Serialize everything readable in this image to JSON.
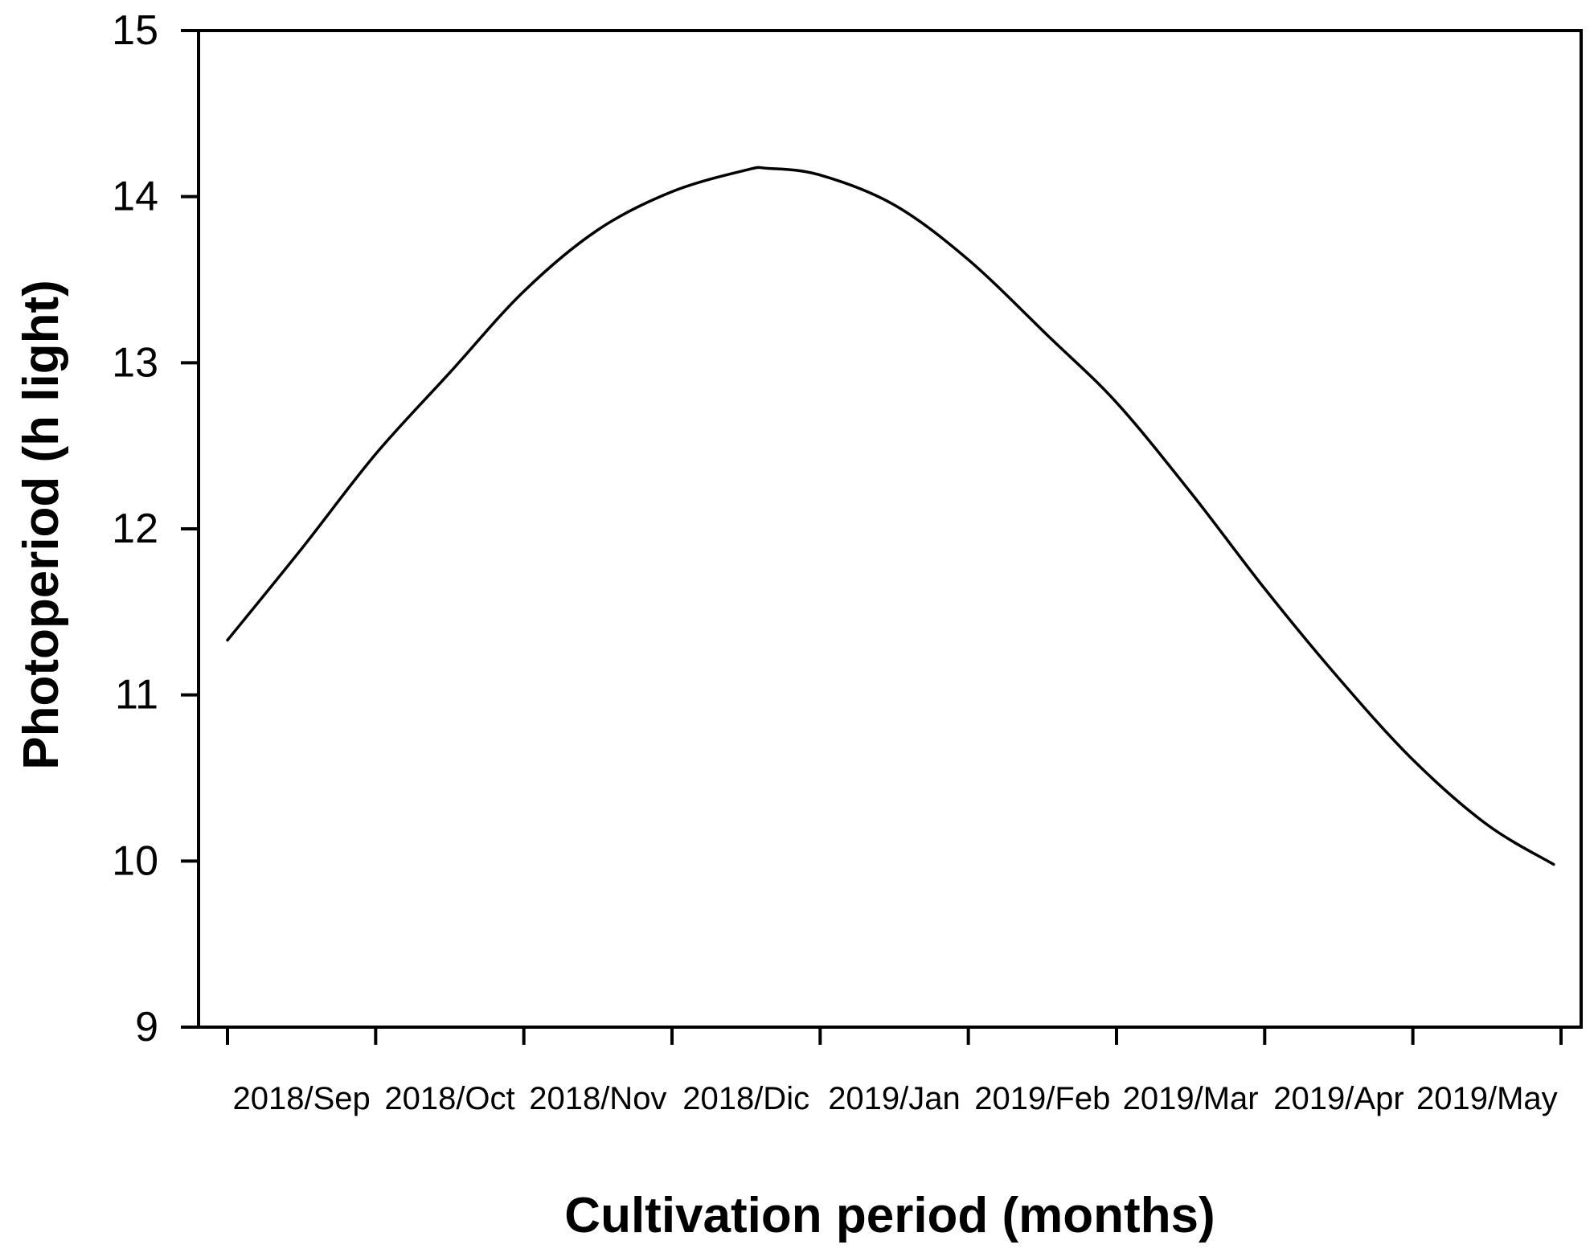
{
  "figure": {
    "background_color": "#ffffff",
    "ink_color": "#000000"
  },
  "chart_data": {
    "type": "line",
    "title": "",
    "xlabel": "Cultivation period (months)",
    "ylabel": "Photoperiod (h light)",
    "x_tick_labels": [
      "2018/Sep",
      "2018/Oct",
      "2018/Nov",
      "2018/Dic",
      "2019/Jan",
      "2019/Feb",
      "2019/Mar",
      "2019/Apr",
      "2019/May"
    ],
    "x_axis_style": "10 unlabeled month-boundary ticks (Sep 1 through Jun 1); month labels centered between ticks",
    "y_ticks": [
      15,
      14,
      13,
      12,
      11,
      10,
      9
    ],
    "ylim": [
      9,
      15
    ],
    "grid": false,
    "legend": "none",
    "frame": "full box",
    "series": [
      {
        "name": "Photoperiod",
        "color": "#000000",
        "points": [
          {
            "date": "2018-09-01",
            "month_pos": 0.0,
            "hours": 11.33
          },
          {
            "date": "2018-09-16",
            "month_pos": 0.5,
            "hours": 11.88
          },
          {
            "date": "2018-10-01",
            "month_pos": 1.0,
            "hours": 12.45
          },
          {
            "date": "2018-10-16",
            "month_pos": 1.5,
            "hours": 12.94
          },
          {
            "date": "2018-11-01",
            "month_pos": 2.0,
            "hours": 13.43
          },
          {
            "date": "2018-11-16",
            "month_pos": 2.5,
            "hours": 13.8
          },
          {
            "date": "2018-12-01",
            "month_pos": 3.0,
            "hours": 14.03
          },
          {
            "date": "2018-12-16",
            "month_pos": 3.5,
            "hours": 14.16
          },
          {
            "date": "2018-12-21",
            "month_pos": 3.65,
            "hours": 14.17
          },
          {
            "date": "2019-01-01",
            "month_pos": 4.0,
            "hours": 14.13
          },
          {
            "date": "2019-01-16",
            "month_pos": 4.5,
            "hours": 13.95
          },
          {
            "date": "2019-02-01",
            "month_pos": 5.0,
            "hours": 13.62
          },
          {
            "date": "2019-02-16",
            "month_pos": 5.54,
            "hours": 13.16
          },
          {
            "date": "2019-03-01",
            "month_pos": 6.0,
            "hours": 12.76
          },
          {
            "date": "2019-03-16",
            "month_pos": 6.5,
            "hours": 12.22
          },
          {
            "date": "2019-04-01",
            "month_pos": 7.0,
            "hours": 11.64
          },
          {
            "date": "2019-04-16",
            "month_pos": 7.5,
            "hours": 11.1
          },
          {
            "date": "2019-05-01",
            "month_pos": 8.0,
            "hours": 10.61
          },
          {
            "date": "2019-05-16",
            "month_pos": 8.5,
            "hours": 10.22
          },
          {
            "date": "2019-05-30",
            "month_pos": 8.95,
            "hours": 9.98
          }
        ]
      }
    ]
  }
}
